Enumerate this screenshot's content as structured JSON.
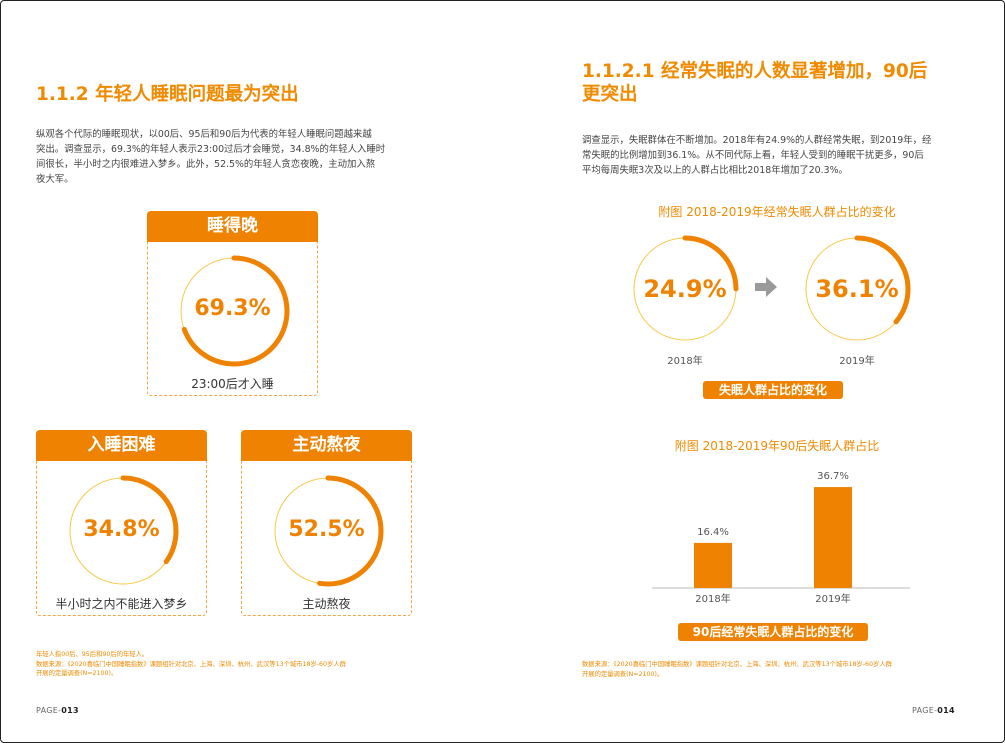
{
  "left": {
    "title": "1.1.2  年轻人睡眠问题最为突出",
    "intro": [
      "纵观各个代际的睡眠现状，以00后、95后和90后为代表的年轻人睡眠问题越来越",
      "突出。调查显示，69.3%的年轻人表示23:00过后才会睡觉，34.8%的年轻人入睡时",
      "间很长，半小时之内很难进入梦乡。此外，52.5%的年轻人贪恋夜晚，主动加入熬",
      "夜大军。"
    ],
    "cards": [
      {
        "head": "睡得晚",
        "value": "69.3%",
        "fraction": 0.693,
        "caption": "23:00后才入睡"
      },
      {
        "head": "入睡困难",
        "value": "34.8%",
        "fraction": 0.348,
        "caption": "半小时之内不能进入梦乡"
      },
      {
        "head": "主动熬夜",
        "value": "52.5%",
        "fraction": 0.525,
        "caption": "主动熬夜"
      }
    ],
    "notes": [
      "年轻人指00后、95后和90后的年轻人。",
      "数据来源：《2020喜临门中国睡眠指数》课题组针对北京、上海、深圳、杭州、武汉等13个城市18岁-60岁人群",
      "开展的定量调查(N=2100)。"
    ],
    "page_prefix": "PAGE-",
    "page_num": "013"
  },
  "right": {
    "title_line1": "1.1.2.1 经常失眠的人数显著增加，90后",
    "title_line2": "更突出",
    "intro": [
      "调查显示，失眠群体在不断增加。2018年有24.9%的人群经常失眠，到2019年，经",
      "常失眠的比例增加到36.1%。从不同代际上看，年轻人受到的睡眠干扰更多，90后",
      "平均每周失眠3次及以上的人群占比相比2018年增加了20.3%。"
    ],
    "fig1_title": "附图  2018-2019年经常失眠人群占比的变化",
    "fig1_pill": "失眠人群占比的变化",
    "fig2_title": "附图  2018-2019年90后失眠人群占比",
    "fig2_pill": "90后经常失眠人群占比的变化",
    "notes": [
      "数据来源：《2020喜临门中国睡眠指数》课题组针对北京、上海、深圳、杭州、武汉等13个城市18岁-60岁人群",
      "开展的定量调查(N=2100)。"
    ],
    "page_prefix": "PAGE-",
    "page_num": "014"
  },
  "chart_data": [
    {
      "type": "pie",
      "title": "附图  2018-2019年经常失眠人群占比的变化",
      "categories": [
        "2018年",
        "2019年"
      ],
      "values": [
        24.9,
        36.1
      ],
      "value_labels": [
        "24.9%",
        "36.1%"
      ]
    },
    {
      "type": "bar",
      "title": "附图  2018-2019年90后失眠人群占比",
      "categories": [
        "2018年",
        "2019年"
      ],
      "values": [
        16.4,
        36.7
      ],
      "value_labels": [
        "16.4%",
        "36.7%"
      ],
      "ylim": [
        0,
        40
      ]
    }
  ],
  "colors": {
    "accent": "#ef8200",
    "ring_track": "#f7c948"
  }
}
